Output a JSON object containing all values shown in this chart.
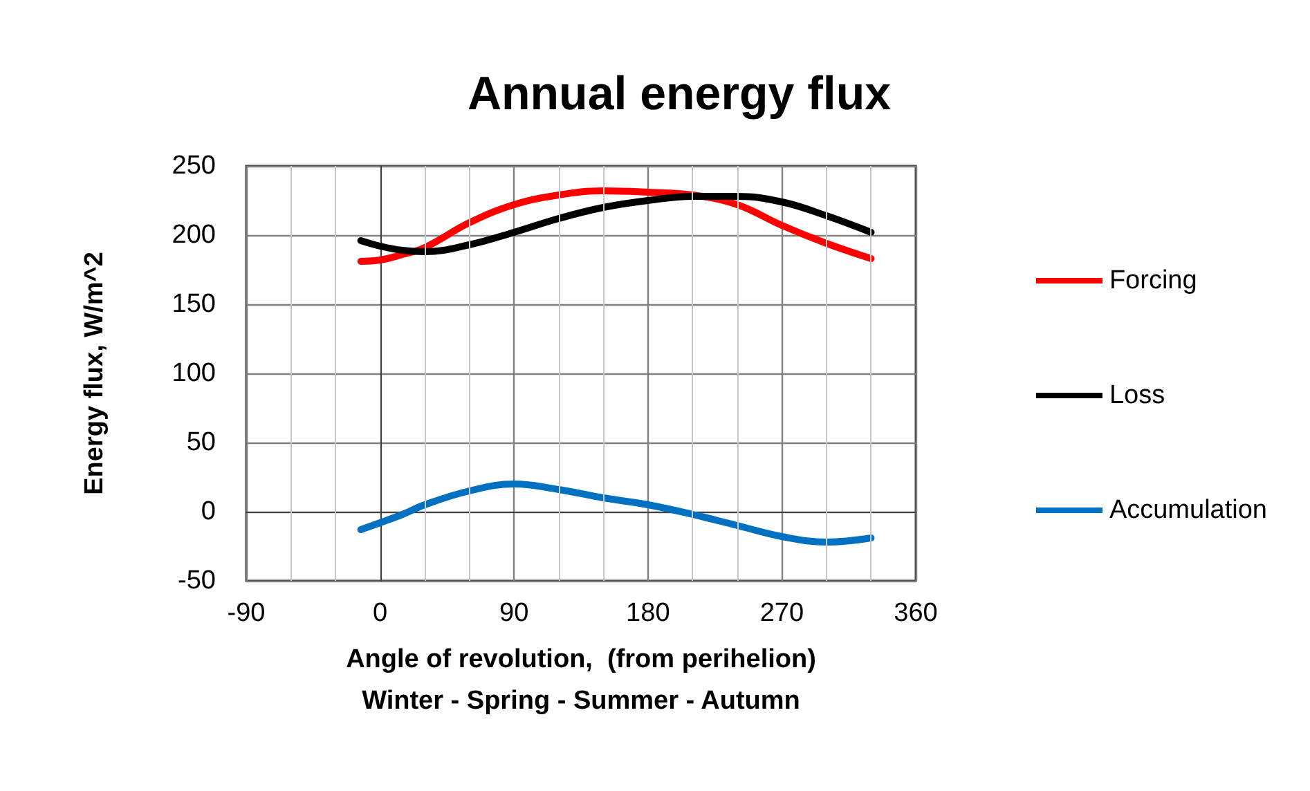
{
  "chart_data": {
    "type": "line",
    "title": "Annual energy flux",
    "xlabel": "Angle of revolution,  (from perihelion)\nWinter - Spring - Summer - Autumn",
    "ylabel": "Energy flux, W/m^2",
    "x": [
      -13,
      0,
      15,
      30,
      60,
      90,
      120,
      150,
      180,
      210,
      240,
      270,
      300,
      330
    ],
    "series": [
      {
        "name": "Forcing",
        "color": "#ff0000",
        "values": [
          181,
          182,
          186,
          191,
          209,
          222,
          229,
          232,
          231,
          229,
          222,
          207,
          194,
          183
        ]
      },
      {
        "name": "Loss",
        "color": "#000000",
        "values": [
          196,
          192,
          189,
          188,
          193,
          202,
          212,
          220,
          225,
          228,
          228,
          224,
          214,
          202
        ]
      },
      {
        "name": "Accumulation",
        "color": "#0070c0",
        "values": [
          -13,
          -8,
          -2,
          5,
          15,
          20,
          16,
          10,
          5,
          -2,
          -10,
          -18,
          -22,
          -19
        ]
      }
    ],
    "xlim": [
      -90,
      360
    ],
    "xticks": [
      -90,
      0,
      90,
      180,
      270,
      360
    ],
    "ylim": [
      -50,
      250
    ],
    "yticks": [
      -50,
      0,
      50,
      100,
      150,
      200,
      250
    ],
    "grid": true,
    "legend": "right",
    "marker": "none",
    "line_style": "solid"
  }
}
